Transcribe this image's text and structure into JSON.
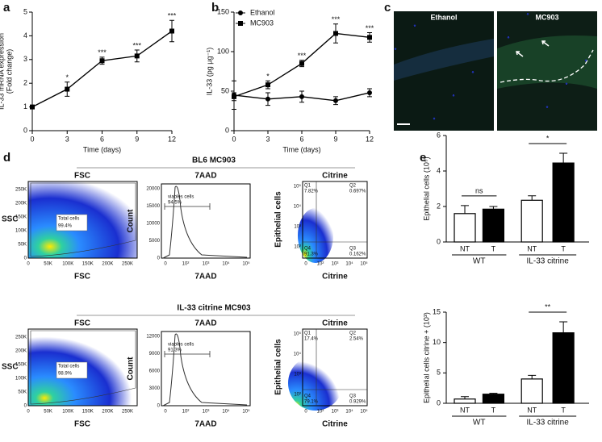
{
  "chart_data": [
    {
      "type": "line",
      "panel": "a",
      "x": [
        0,
        3,
        6,
        9,
        12
      ],
      "xlim": [
        0,
        12
      ],
      "xticks": [
        0,
        3,
        6,
        9,
        12
      ],
      "ylim": [
        0,
        5
      ],
      "yticks": [
        0,
        1,
        2,
        3,
        4,
        5
      ],
      "x_label": "Time (days)",
      "y_label": [
        "IL-33 mRNA expression",
        "(Fold change)"
      ],
      "series": [
        {
          "name": null,
          "color": "#000000",
          "marker": "square",
          "values": [
            1,
            1.75,
            2.95,
            3.15,
            4.2
          ],
          "errors": [
            0.05,
            0.3,
            0.15,
            0.25,
            0.45
          ],
          "significance": [
            null,
            "*",
            "***",
            "***",
            "***"
          ]
        }
      ]
    },
    {
      "type": "line",
      "panel": "b",
      "x": [
        0,
        3,
        6,
        9,
        12
      ],
      "xlim": [
        0,
        12
      ],
      "xticks": [
        0,
        3,
        6,
        9,
        12
      ],
      "ylim": [
        0,
        150
      ],
      "yticks": [
        0,
        50,
        100,
        150
      ],
      "x_label": "Time (days)",
      "y_label": [
        "IL-33 (pg µg⁻¹)"
      ],
      "legend": "top-left",
      "series": [
        {
          "name": "Ethanol",
          "color": "#000000",
          "marker": "circle",
          "values": [
            45,
            40,
            43,
            38,
            48
          ],
          "errors": [
            18,
            8,
            7,
            5,
            5
          ]
        },
        {
          "name": "MC903",
          "color": "#000000",
          "marker": "square",
          "values": [
            43,
            58,
            85,
            123,
            118
          ],
          "errors": [
            5,
            5,
            4,
            12,
            6
          ],
          "significance": [
            null,
            "*",
            "***",
            "***",
            "***"
          ]
        }
      ]
    },
    {
      "type": "bar",
      "panel": "e",
      "categories": [
        "NT",
        "T",
        "NT",
        "T"
      ],
      "groups": [
        "WT",
        "IL-33 citrine"
      ],
      "values": [
        1.6,
        1.85,
        2.35,
        4.45
      ],
      "errors": [
        0.45,
        0.15,
        0.25,
        0.55
      ],
      "colors": [
        "#ffffff",
        "#000000",
        "#ffffff",
        "#000000"
      ],
      "ylim": [
        0,
        6
      ],
      "yticks": [
        0,
        2,
        4,
        6
      ],
      "y_label": "Epithelial cells (10⁵)",
      "comparisons": [
        "ns",
        "*"
      ]
    },
    {
      "type": "bar",
      "categories": [
        "NT",
        "T",
        "NT",
        "T"
      ],
      "groups": [
        "WT",
        "IL-33 citrine"
      ],
      "values": [
        0.7,
        1.5,
        4.0,
        11.6
      ],
      "errors": [
        0.4,
        0.15,
        0.6,
        1.8
      ],
      "colors": [
        "#ffffff",
        "#000000",
        "#ffffff",
        "#000000"
      ],
      "ylim": [
        0,
        15
      ],
      "yticks": [
        0,
        5,
        10,
        15
      ],
      "y_label": "Epithelial cells citrine + (10³)",
      "comparisons": [
        "**"
      ]
    }
  ],
  "panel_c": {
    "label": "c",
    "left": "Ethanol",
    "right": "MC903"
  },
  "panel_d": {
    "label": "d",
    "scatter_xticks": [
      "0",
      "50K",
      "100K",
      "150K",
      "200K",
      "250K"
    ],
    "scatter_yticks": [
      "0",
      "50K",
      "100K",
      "150K",
      "200K",
      "250K"
    ],
    "hist_xticks": [
      "0",
      "10²",
      "10³",
      "10⁴",
      "10⁵"
    ],
    "citrine_xticks": [
      "0",
      "10²",
      "10³",
      "10⁴",
      "10⁵"
    ],
    "citrine_yticks": [
      "10²",
      "10³",
      "10⁴",
      "10⁵"
    ],
    "rows": [
      {
        "title": "BL6 MC903",
        "fsc": "FSC",
        "ssc": "SSC",
        "gate": "Total cells",
        "gate_value": "99.4%",
        "hist_top": "7AAD",
        "count": "Count",
        "hist_gate": "viables cells",
        "hist_value": "94.5%",
        "hist_yticks": [
          "0",
          "5000",
          "10000",
          "15000",
          "20000"
        ],
        "citrine": "Citrine",
        "epi": "Epithelial cells",
        "quadrants": [
          {
            "name": "Q1",
            "value": "7.82%"
          },
          {
            "name": "Q2",
            "value": "0.697%"
          },
          {
            "name": "Q3",
            "value": "0.162%"
          },
          {
            "name": "Q4",
            "value": "91.3%"
          }
        ]
      },
      {
        "title": "IL-33 citrine  MC903",
        "fsc": "FSC",
        "ssc": "SSC",
        "gate": "Total cells",
        "gate_value": "98.9%",
        "hist_top": "7AAD",
        "count": "Count",
        "hist_gate": "viables cells",
        "hist_value": "91.3%",
        "hist_yticks": [
          "0",
          "3000",
          "6000",
          "9000",
          "12000"
        ],
        "citrine": "Citrine",
        "epi": "Epithelial cells",
        "quadrants": [
          {
            "name": "Q1",
            "value": "17.4%"
          },
          {
            "name": "Q2",
            "value": "2.54%"
          },
          {
            "name": "Q3",
            "value": "0.929%"
          },
          {
            "name": "Q4",
            "value": "79.1%"
          }
        ]
      }
    ]
  }
}
